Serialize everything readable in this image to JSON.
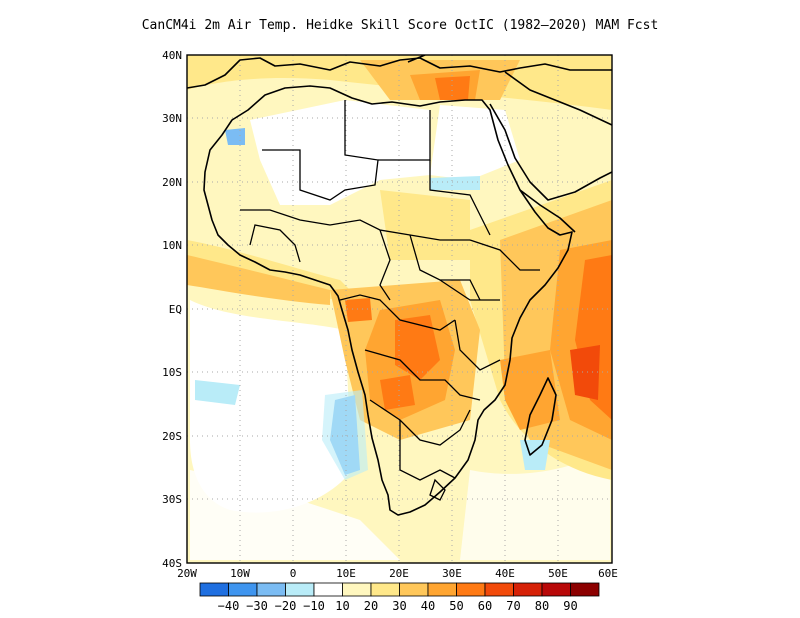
{
  "title": "CanCM4i  2m Air Temp. Heidke Skill Score OctIC (1982–2020) MAM Fcst",
  "lat_labels": [
    "40N",
    "30N",
    "20N",
    "10N",
    "EQ",
    "10S",
    "20S",
    "30S",
    "40S"
  ],
  "lon_labels": [
    "20W",
    "10W",
    "0",
    "10E",
    "20E",
    "30E",
    "40E",
    "50E",
    "60E"
  ],
  "colorbar": {
    "labels": [
      "−40",
      "−30",
      "−20",
      "−10",
      "10",
      "20",
      "30",
      "40",
      "50",
      "60",
      "70",
      "80",
      "90"
    ],
    "colors": [
      "#1f6fe0",
      "#3f95ef",
      "#7bbcf3",
      "#b9ecf8",
      "#ffffff",
      "#fff7bf",
      "#ffe88a",
      "#ffc75a",
      "#ffa531",
      "#ff7a14",
      "#f24a0a",
      "#d62107",
      "#b80808",
      "#8c0000"
    ]
  },
  "map_extent": {
    "lon": [
      -20,
      60
    ],
    "lat": [
      -40,
      40
    ]
  }
}
